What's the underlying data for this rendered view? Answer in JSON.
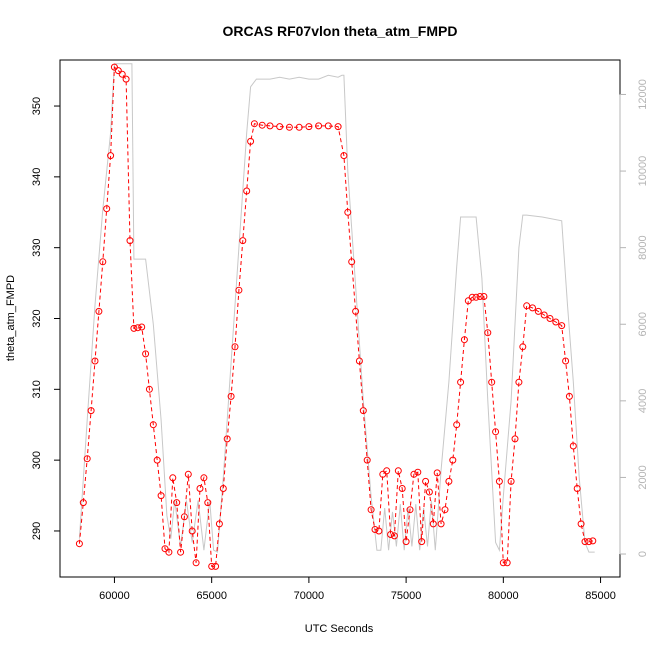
{
  "chart_data": {
    "type": "line",
    "title": "ORCAS RF07vlon theta_atm_FMPD",
    "xlabel": "UTC Seconds",
    "ylabel": "theta_atm_FMPD",
    "xlim": [
      57200,
      86000
    ],
    "ylim": [
      283.5,
      356.5
    ],
    "y2lim": [
      -600,
      12900
    ],
    "x_ticks": [
      60000,
      65000,
      70000,
      75000,
      80000,
      85000
    ],
    "x_tick_labels": [
      "60000",
      "65000",
      "70000",
      "75000",
      "80000",
      "85000"
    ],
    "y_ticks": [
      290,
      300,
      310,
      320,
      330,
      340,
      350
    ],
    "y_tick_labels": [
      "290",
      "300",
      "310",
      "320",
      "330",
      "340",
      "350"
    ],
    "y2_ticks": [
      0,
      2000,
      4000,
      6000,
      8000,
      10000,
      12000
    ],
    "y2_tick_labels": [
      "0",
      "2000",
      "4000",
      "6000",
      "8000",
      "10000",
      "12000"
    ],
    "grid": false,
    "colors": {
      "primary": "#ff0000",
      "secondary": "#c8c8c8",
      "axis": "#000000",
      "axis_right": "#b4b4b4"
    },
    "series": [
      {
        "role": "primary",
        "style": "dashed line with open circles",
        "x": [
          58200,
          58400,
          58600,
          58800,
          59000,
          59200,
          59400,
          59600,
          59800,
          60000,
          60200,
          60400,
          60600,
          60800,
          61000,
          61200,
          61400,
          61600,
          61800,
          62000,
          62200,
          62400,
          62600,
          62800,
          63000,
          63200,
          63400,
          63600,
          63800,
          64000,
          64200,
          64400,
          64600,
          64800,
          65000,
          65200,
          65400,
          65600,
          65800,
          66000,
          66200,
          66400,
          66600,
          66800,
          67000,
          67200,
          67600,
          68000,
          68500,
          69000,
          69500,
          70000,
          70500,
          71000,
          71500,
          71800,
          72000,
          72200,
          72400,
          72600,
          72800,
          73000,
          73200,
          73400,
          73600,
          73800,
          74000,
          74200,
          74400,
          74600,
          74800,
          75000,
          75200,
          75400,
          75600,
          75800,
          76000,
          76200,
          76400,
          76600,
          76800,
          77000,
          77200,
          77400,
          77600,
          77800,
          78000,
          78200,
          78400,
          78600,
          78800,
          79000,
          79200,
          79400,
          79600,
          79800,
          80000,
          80200,
          80400,
          80600,
          80800,
          81000,
          81200,
          81500,
          81800,
          82100,
          82400,
          82700,
          83000,
          83200,
          83400,
          83600,
          83800,
          84000,
          84200,
          84400,
          84600
        ],
        "values": [
          288.2,
          294.0,
          300.2,
          307.0,
          314.0,
          321.0,
          328.0,
          335.5,
          343.0,
          355.5,
          355.0,
          354.5,
          353.8,
          331.0,
          318.6,
          318.7,
          318.8,
          315.0,
          310.0,
          305.0,
          300.0,
          295.0,
          287.5,
          287.0,
          297.5,
          294.0,
          287.0,
          292.0,
          298.0,
          290.0,
          285.5,
          296.0,
          297.5,
          294.0,
          285.0,
          285.0,
          291.0,
          296.0,
          303.0,
          309.0,
          316.0,
          324.0,
          331.0,
          338.0,
          345.0,
          347.5,
          347.3,
          347.2,
          347.1,
          347.0,
          347.0,
          347.1,
          347.2,
          347.2,
          347.1,
          343.0,
          335.0,
          328.0,
          321.0,
          314.0,
          307.0,
          300.0,
          293.0,
          290.2,
          290.0,
          298.0,
          298.5,
          289.5,
          289.3,
          298.5,
          296.0,
          288.5,
          293.0,
          298.0,
          298.3,
          288.5,
          297.0,
          295.5,
          291.0,
          298.2,
          291.0,
          293.0,
          297.0,
          300.0,
          305.0,
          311.0,
          317.0,
          322.5,
          323.0,
          323.0,
          323.1,
          323.1,
          318.0,
          311.0,
          304.0,
          297.0,
          285.5,
          285.5,
          297.0,
          303.0,
          311.0,
          316.0,
          321.8,
          321.5,
          321.0,
          320.5,
          320.0,
          319.5,
          319.0,
          314.0,
          309.0,
          302.0,
          296.0,
          291.0,
          288.5,
          288.5,
          288.6
        ]
      },
      {
        "role": "secondary",
        "style": "solid line",
        "axis": "right",
        "x": [
          58200,
          58600,
          59000,
          59400,
          59800,
          60000,
          60200,
          60900,
          61000,
          61100,
          61600,
          62000,
          62400,
          62700,
          62900,
          63100,
          63400,
          63700,
          64000,
          64300,
          64600,
          64900,
          65100,
          65300,
          65600,
          66000,
          66400,
          66800,
          67000,
          67300,
          67600,
          68000,
          68500,
          69000,
          69500,
          70000,
          70500,
          71000,
          71500,
          71700,
          71800,
          72000,
          72400,
          72800,
          73200,
          73500,
          73700,
          73900,
          74100,
          74300,
          74500,
          74700,
          74900,
          75100,
          75300,
          75500,
          75700,
          75900,
          76100,
          76300,
          76500,
          76800,
          77200,
          77600,
          77800,
          78200,
          78600,
          78900,
          79200,
          79600,
          79800,
          80000,
          80400,
          80800,
          81000,
          81200,
          82000,
          83000,
          83300,
          83600,
          83900,
          84200,
          84400,
          84700
        ],
        "values": [
          400,
          3500,
          6500,
          9000,
          11000,
          12800,
          12800,
          12800,
          7700,
          7700,
          7700,
          6000,
          3500,
          1000,
          400,
          1400,
          200,
          1400,
          300,
          1400,
          100,
          1400,
          100,
          50,
          2000,
          5000,
          8000,
          11000,
          12200,
          12400,
          12400,
          12400,
          12450,
          12400,
          12450,
          12400,
          12400,
          12500,
          12450,
          12500,
          12500,
          10000,
          7000,
          4000,
          1500,
          100,
          100,
          1200,
          100,
          1100,
          200,
          1300,
          100,
          1200,
          200,
          1300,
          100,
          1200,
          200,
          1400,
          100,
          2200,
          4500,
          7500,
          8800,
          8800,
          8800,
          7200,
          4000,
          300,
          100,
          1500,
          4000,
          8000,
          8850,
          8850,
          8800,
          8700,
          6500,
          4500,
          2000,
          300,
          50,
          50
        ]
      }
    ]
  }
}
